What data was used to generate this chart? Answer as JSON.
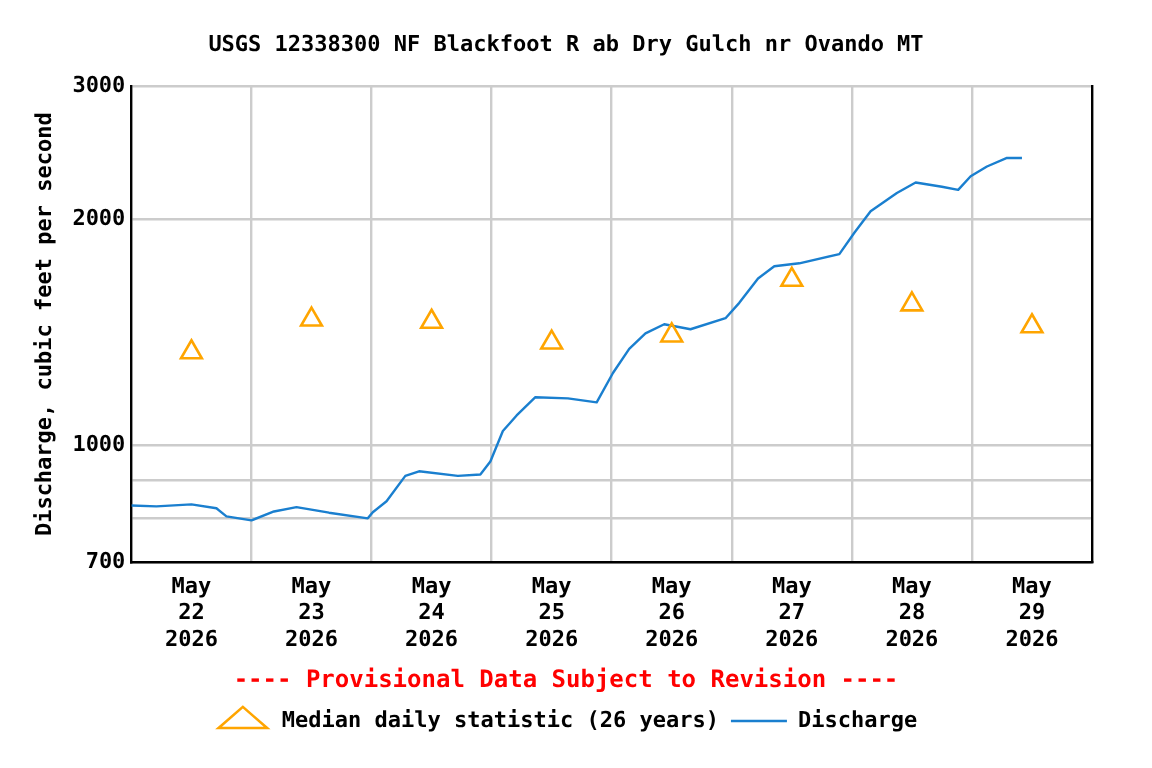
{
  "chart_data": {
    "type": "line",
    "title": "USGS 12338300 NF Blackfoot R ab Dry Gulch nr Ovando MT",
    "ylabel": "Discharge, cubic feet per second",
    "annotations": [
      "---- Provisional Data Subject to Revision ----"
    ],
    "xlim": [
      "2026-05-22T00:00",
      "2026-05-30T00:00"
    ],
    "xticks": [
      {
        "value": "2026-05-22T12:00",
        "label": "May\n22\n2026"
      },
      {
        "value": "2026-05-23T00:00",
        "label": null
      },
      {
        "value": "2026-05-23T12:00",
        "label": "May\n23\n2026"
      },
      {
        "value": "2026-05-24T00:00",
        "label": null
      },
      {
        "value": "2026-05-24T12:00",
        "label": "May\n24\n2026"
      },
      {
        "value": "2026-05-25T00:00",
        "label": null
      },
      {
        "value": "2026-05-25T12:00",
        "label": "May\n25\n2026"
      },
      {
        "value": "2026-05-26T00:00",
        "label": null
      },
      {
        "value": "2026-05-26T12:00",
        "label": "May\n26\n2026"
      },
      {
        "value": "2026-05-27T00:00",
        "label": null
      },
      {
        "value": "2026-05-27T12:00",
        "label": "May\n27\n2026"
      },
      {
        "value": "2026-05-28T00:00",
        "label": null
      },
      {
        "value": "2026-05-28T12:00",
        "label": "May\n28\n2026"
      },
      {
        "value": "2026-05-29T00:00",
        "label": null
      },
      {
        "value": "2026-05-29T12:00",
        "label": "May\n29\n2026"
      }
    ],
    "ylim": [
      700,
      3000
    ],
    "yticks": [
      700,
      {
        "value": 800,
        "label": null
      },
      {
        "value": 900,
        "label": null
      },
      1000,
      2000,
      3000
    ],
    "log": true,
    "grid": true,
    "legend": "bottom",
    "series": [
      {
        "name": "Median daily statistic (26 years)",
        "type": "scatter",
        "marker": "triangle",
        "color": "#ffa500",
        "x": [
          "2026-05-22T12:00",
          "2026-05-23T12:00",
          "2026-05-24T12:00",
          "2026-05-25T12:00",
          "2026-05-26T12:00",
          "2026-05-27T12:00",
          "2026-05-28T12:00",
          "2026-05-29T12:00"
        ],
        "values": [
          1330,
          1470,
          1460,
          1370,
          1400,
          1660,
          1540,
          1440
        ]
      },
      {
        "name": "Discharge",
        "marker": "none",
        "color": "#1a7fcf",
        "x": [
          "2026-05-22T00:00",
          "2026-05-22T05:00",
          "2026-05-22T12:00",
          "2026-05-22T17:00",
          "2026-05-22T19:00",
          "2026-05-23T00:00",
          "2026-05-23T04:30",
          "2026-05-23T09:00",
          "2026-05-23T15:30",
          "2026-05-23T23:15",
          "2026-05-24T00:15",
          "2026-05-24T03:00",
          "2026-05-24T06:45",
          "2026-05-24T09:30",
          "2026-05-24T17:15",
          "2026-05-24T21:45",
          "2026-05-24T23:45",
          "2026-05-25T02:15",
          "2026-05-25T05:00",
          "2026-05-25T08:45",
          "2026-05-25T15:15",
          "2026-05-25T21:00",
          "2026-05-26T00:15",
          "2026-05-26T03:30",
          "2026-05-26T06:45",
          "2026-05-26T10:30",
          "2026-05-26T15:45",
          "2026-05-26T22:45",
          "2026-05-27T01:30",
          "2026-05-27T05:15",
          "2026-05-27T08:30",
          "2026-05-27T13:30",
          "2026-05-27T21:30",
          "2026-05-28T00:30",
          "2026-05-28T03:45",
          "2026-05-28T09:00",
          "2026-05-28T12:45",
          "2026-05-28T18:00",
          "2026-05-28T21:15",
          "2026-05-28T23:45",
          "2026-05-29T03:00",
          "2026-05-29T07:00",
          "2026-05-29T10:00"
        ],
        "values": [
          832,
          830,
          835,
          825,
          805,
          795,
          817,
          828,
          814,
          800,
          815,
          843,
          911,
          924,
          911,
          915,
          952,
          1045,
          1096,
          1159,
          1155,
          1141,
          1248,
          1344,
          1409,
          1449,
          1427,
          1476,
          1547,
          1667,
          1730,
          1746,
          1796,
          1917,
          2047,
          2165,
          2236,
          2207,
          2186,
          2279,
          2348,
          2410,
          2410
        ]
      }
    ]
  }
}
